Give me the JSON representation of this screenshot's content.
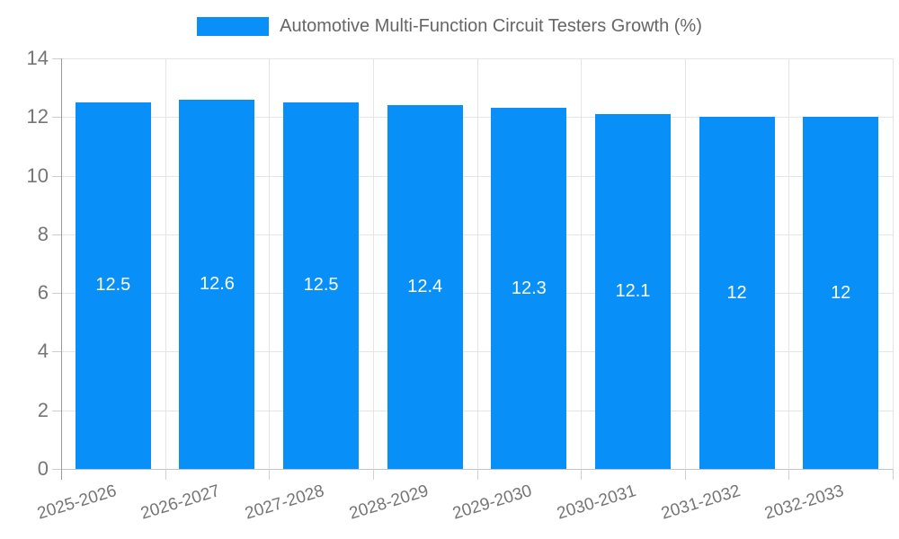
{
  "legend": {
    "label": "Automotive Multi-Function Circuit Testers Growth (%)"
  },
  "chart_data": {
    "type": "bar",
    "title": "Automotive Multi-Function Circuit Testers Growth (%)",
    "categories": [
      "2025-2026",
      "2026-2027",
      "2027-2028",
      "2028-2029",
      "2029-2030",
      "2030-2031",
      "2031-2032",
      "2032-2033"
    ],
    "series": [
      {
        "name": "Automotive Multi-Function Circuit Testers Growth (%)",
        "values": [
          12.5,
          12.6,
          12.5,
          12.4,
          12.3,
          12.1,
          12,
          12
        ],
        "value_labels": [
          "12.5",
          "12.6",
          "12.5",
          "12.4",
          "12.3",
          "12.1",
          "12",
          "12"
        ]
      }
    ],
    "xlabel": "",
    "ylabel": "",
    "ylim": [
      0,
      14
    ],
    "yticks": [
      0,
      2,
      4,
      6,
      8,
      10,
      12,
      14
    ],
    "grid": true,
    "legend_position": "top",
    "bar_labels_inside": true
  },
  "colors": {
    "bar": "#0990F8",
    "bar_label_text": "#ffffff",
    "gridline": "#e5e5e5",
    "y_axis_line": "#999999",
    "x_axis_line": "#c4c4c4",
    "tick_text": "#757575",
    "legend_text": "#666666",
    "background": "#ffffff"
  }
}
